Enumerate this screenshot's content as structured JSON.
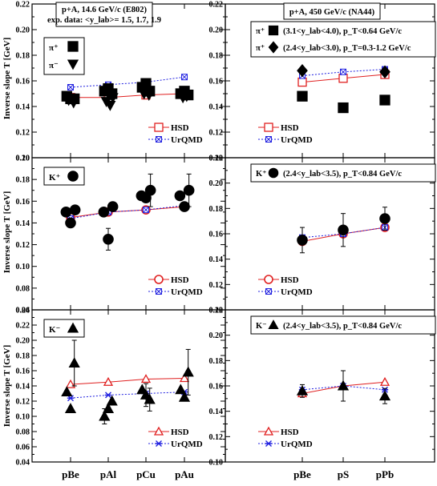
{
  "ylabel": "Inverse slope T [GeV]",
  "colors": {
    "hsd": "#e02020",
    "urqmd": "#2020e0",
    "data": "#000000"
  },
  "legend": {
    "hsd": "HSD",
    "urqmd": "UrQMD"
  },
  "left_categories": [
    "pBe",
    "pAl",
    "pCu",
    "pAu"
  ],
  "right_categories": [
    "pBe",
    "pS",
    "pPb"
  ],
  "header_left": {
    "line1": "p+A, 14.6 GeV/c (E802)",
    "line2": "exp. data:  <y_lab>= 1.5, 1.7, 1.9"
  },
  "header_right": {
    "line1": "p+A, 450 GeV/c (NA44)"
  },
  "chart_data": [
    {
      "id": "pi-e802",
      "type": "scatter",
      "ylim": [
        0.1,
        0.22
      ],
      "yticks": [
        "0.10",
        "0.12",
        "0.14",
        "0.16",
        "0.18",
        "0.20",
        "0.22"
      ],
      "categories": [
        "pBe",
        "pAl",
        "pCu",
        "pAu"
      ],
      "particle_labels": [
        "π⁺",
        "π⁻"
      ],
      "series": [
        {
          "name": "HSD",
          "values": [
            0.147,
            0.147,
            0.149,
            0.15
          ]
        },
        {
          "name": "UrQMD",
          "values": [
            0.155,
            0.157,
            0.159,
            0.163
          ]
        }
      ],
      "data_points": [
        {
          "x": 0,
          "offset": -0.1,
          "y": 0.148,
          "marker": "square"
        },
        {
          "x": 0,
          "offset": 0.0,
          "y": 0.146,
          "marker": "square"
        },
        {
          "x": 0,
          "offset": 0.1,
          "y": 0.146,
          "marker": "square"
        },
        {
          "x": 0,
          "offset": -0.05,
          "y": 0.145,
          "marker": "tri-down"
        },
        {
          "x": 0,
          "offset": 0.08,
          "y": 0.143,
          "marker": "tri-down"
        },
        {
          "x": 1,
          "offset": -0.1,
          "y": 0.152,
          "marker": "square"
        },
        {
          "x": 1,
          "offset": 0.0,
          "y": 0.154,
          "marker": "square"
        },
        {
          "x": 1,
          "offset": 0.1,
          "y": 0.15,
          "marker": "square"
        },
        {
          "x": 1,
          "offset": -0.05,
          "y": 0.144,
          "marker": "tri-down"
        },
        {
          "x": 1,
          "offset": 0.05,
          "y": 0.141,
          "marker": "tri-down"
        },
        {
          "x": 1,
          "offset": 0.12,
          "y": 0.147,
          "marker": "tri-down"
        },
        {
          "x": 2,
          "offset": -0.1,
          "y": 0.155,
          "marker": "square"
        },
        {
          "x": 2,
          "offset": 0.0,
          "y": 0.158,
          "marker": "square"
        },
        {
          "x": 2,
          "offset": 0.1,
          "y": 0.152,
          "marker": "square"
        },
        {
          "x": 2,
          "offset": -0.05,
          "y": 0.15,
          "marker": "tri-down"
        },
        {
          "x": 2,
          "offset": 0.08,
          "y": 0.149,
          "marker": "tri-down"
        },
        {
          "x": 3,
          "offset": -0.1,
          "y": 0.15,
          "marker": "square"
        },
        {
          "x": 3,
          "offset": 0.0,
          "y": 0.152,
          "marker": "square"
        },
        {
          "x": 3,
          "offset": 0.1,
          "y": 0.149,
          "marker": "square"
        },
        {
          "x": 3,
          "offset": -0.04,
          "y": 0.147,
          "marker": "tri-down"
        },
        {
          "x": 3,
          "offset": 0.06,
          "y": 0.148,
          "marker": "tri-down"
        }
      ]
    },
    {
      "id": "kplus-e802",
      "type": "scatter",
      "ylim": [
        0.06,
        0.2
      ],
      "yticks": [
        "0.06",
        "0.08",
        "0.10",
        "0.12",
        "0.14",
        "0.16",
        "0.18",
        "0.20"
      ],
      "categories": [
        "pBe",
        "pAl",
        "pCu",
        "pAu"
      ],
      "particle_labels": [
        "K⁺"
      ],
      "series": [
        {
          "name": "HSD",
          "values": [
            0.145,
            0.15,
            0.152,
            0.155
          ]
        },
        {
          "name": "UrQMD",
          "values": [
            0.144,
            0.15,
            0.152,
            0.156
          ]
        }
      ],
      "data_points": [
        {
          "x": 0,
          "offset": -0.12,
          "y": 0.15,
          "marker": "circle"
        },
        {
          "x": 0,
          "offset": 0.0,
          "y": 0.14,
          "marker": "circle"
        },
        {
          "x": 0,
          "offset": 0.12,
          "y": 0.152,
          "marker": "circle"
        },
        {
          "x": 1,
          "offset": -0.12,
          "y": 0.15,
          "marker": "circle"
        },
        {
          "x": 1,
          "offset": 0.0,
          "y": 0.125,
          "marker": "circle",
          "err": 0.01
        },
        {
          "x": 1,
          "offset": 0.12,
          "y": 0.155,
          "marker": "circle"
        },
        {
          "x": 2,
          "offset": -0.12,
          "y": 0.165,
          "marker": "circle"
        },
        {
          "x": 2,
          "offset": 0.0,
          "y": 0.163,
          "marker": "circle"
        },
        {
          "x": 2,
          "offset": 0.12,
          "y": 0.17,
          "marker": "circle",
          "err": 0.015
        },
        {
          "x": 3,
          "offset": -0.12,
          "y": 0.165,
          "marker": "circle"
        },
        {
          "x": 3,
          "offset": 0.0,
          "y": 0.155,
          "marker": "circle"
        },
        {
          "x": 3,
          "offset": 0.12,
          "y": 0.17,
          "marker": "circle",
          "err": 0.015
        }
      ]
    },
    {
      "id": "kminus-e802",
      "type": "scatter",
      "ylim": [
        0.04,
        0.24
      ],
      "yticks": [
        "0.04",
        "0.06",
        "0.08",
        "0.10",
        "0.12",
        "0.14",
        "0.16",
        "0.18",
        "0.20",
        "0.22",
        "0.24"
      ],
      "categories": [
        "pBe",
        "pAl",
        "pCu",
        "pAu"
      ],
      "particle_labels": [
        "K⁻"
      ],
      "series": [
        {
          "name": "HSD",
          "values": [
            0.142,
            0.145,
            0.149,
            0.15
          ]
        },
        {
          "name": "UrQMD",
          "values": [
            0.124,
            0.128,
            0.13,
            0.132
          ]
        }
      ],
      "data_points": [
        {
          "x": 0,
          "offset": -0.1,
          "y": 0.132,
          "marker": "tri-up"
        },
        {
          "x": 0,
          "offset": 0.0,
          "y": 0.11,
          "marker": "tri-up"
        },
        {
          "x": 0,
          "offset": 0.1,
          "y": 0.17,
          "marker": "tri-up",
          "err": 0.03
        },
        {
          "x": 1,
          "offset": -0.1,
          "y": 0.1,
          "marker": "tri-up",
          "err": 0.01
        },
        {
          "x": 1,
          "offset": 0.0,
          "y": 0.11,
          "marker": "tri-up"
        },
        {
          "x": 1,
          "offset": 0.1,
          "y": 0.12,
          "marker": "tri-up"
        },
        {
          "x": 2,
          "offset": -0.1,
          "y": 0.135,
          "marker": "tri-up"
        },
        {
          "x": 2,
          "offset": 0.0,
          "y": 0.128,
          "marker": "tri-up",
          "err": 0.015
        },
        {
          "x": 2,
          "offset": 0.1,
          "y": 0.122,
          "marker": "tri-up",
          "err": 0.015
        },
        {
          "x": 3,
          "offset": -0.1,
          "y": 0.135,
          "marker": "tri-up"
        },
        {
          "x": 3,
          "offset": 0.0,
          "y": 0.125,
          "marker": "tri-up"
        },
        {
          "x": 3,
          "offset": 0.1,
          "y": 0.158,
          "marker": "tri-up",
          "err": 0.03
        }
      ]
    },
    {
      "id": "pi-na44",
      "type": "scatter",
      "ylim": [
        0.1,
        0.22
      ],
      "yticks": [
        "0.10",
        "0.12",
        "0.14",
        "0.16",
        "0.18",
        "0.20",
        "0.22"
      ],
      "categories": [
        "pBe",
        "pS",
        "pPb"
      ],
      "particle_lines": [
        {
          "label": "π⁺",
          "text": "(3.1<y_lab<4.0), p_T<0.64 GeV/c",
          "marker": "square"
        },
        {
          "label": "π⁺",
          "text": "(2.4<y_lab<3.0), p_T=0.3-1.2 GeV/c",
          "marker": "diamond"
        }
      ],
      "series": [
        {
          "name": "HSD",
          "values": [
            0.159,
            0.162,
            0.165
          ]
        },
        {
          "name": "UrQMD",
          "values": [
            0.164,
            0.167,
            0.169
          ]
        }
      ],
      "data_points": [
        {
          "x": 0,
          "offset": 0.0,
          "y": 0.148,
          "marker": "square"
        },
        {
          "x": 1,
          "offset": 0.0,
          "y": 0.139,
          "marker": "square"
        },
        {
          "x": 2,
          "offset": 0.0,
          "y": 0.145,
          "marker": "square"
        },
        {
          "x": 0,
          "offset": 0.0,
          "y": 0.168,
          "marker": "diamond"
        },
        {
          "x": 2,
          "offset": 0.0,
          "y": 0.167,
          "marker": "diamond"
        }
      ]
    },
    {
      "id": "kplus-na44",
      "type": "scatter",
      "ylim": [
        0.1,
        0.22
      ],
      "yticks": [
        "0.10",
        "0.12",
        "0.14",
        "0.16",
        "0.18",
        "0.20",
        "0.22"
      ],
      "categories": [
        "pBe",
        "pS",
        "pPb"
      ],
      "particle_lines": [
        {
          "label": "K⁺",
          "text": "(2.4<y_lab<3.5), p_T<0.84 GeV/c",
          "marker": "circle"
        }
      ],
      "series": [
        {
          "name": "HSD",
          "values": [
            0.154,
            0.16,
            0.165
          ]
        },
        {
          "name": "UrQMD",
          "values": [
            0.157,
            0.16,
            0.165
          ]
        }
      ],
      "data_points": [
        {
          "x": 0,
          "offset": 0.0,
          "y": 0.155,
          "marker": "circle",
          "err": 0.01
        },
        {
          "x": 1,
          "offset": 0.0,
          "y": 0.163,
          "marker": "circle",
          "err": 0.013
        },
        {
          "x": 2,
          "offset": 0.0,
          "y": 0.172,
          "marker": "circle",
          "err": 0.009
        }
      ]
    },
    {
      "id": "kminus-na44",
      "type": "scatter",
      "ylim": [
        0.1,
        0.22
      ],
      "yticks": [
        "0.10",
        "0.12",
        "0.14",
        "0.16",
        "0.18",
        "0.20",
        "0.22"
      ],
      "categories": [
        "pBe",
        "pS",
        "pPb"
      ],
      "particle_lines": [
        {
          "label": "K⁻",
          "text": "(2.4<y_lab<3.5), p_T<0.84 GeV/c",
          "marker": "tri-up"
        }
      ],
      "series": [
        {
          "name": "HSD",
          "values": [
            0.154,
            0.16,
            0.163
          ]
        },
        {
          "name": "UrQMD",
          "values": [
            0.157,
            0.16,
            0.157
          ]
        }
      ],
      "data_points": [
        {
          "x": 0,
          "offset": 0.0,
          "y": 0.156,
          "marker": "tri-up",
          "err": 0.005
        },
        {
          "x": 1,
          "offset": 0.0,
          "y": 0.16,
          "marker": "tri-up",
          "err": 0.012
        },
        {
          "x": 2,
          "offset": 0.0,
          "y": 0.152,
          "marker": "tri-up",
          "err": 0.006
        }
      ]
    }
  ]
}
